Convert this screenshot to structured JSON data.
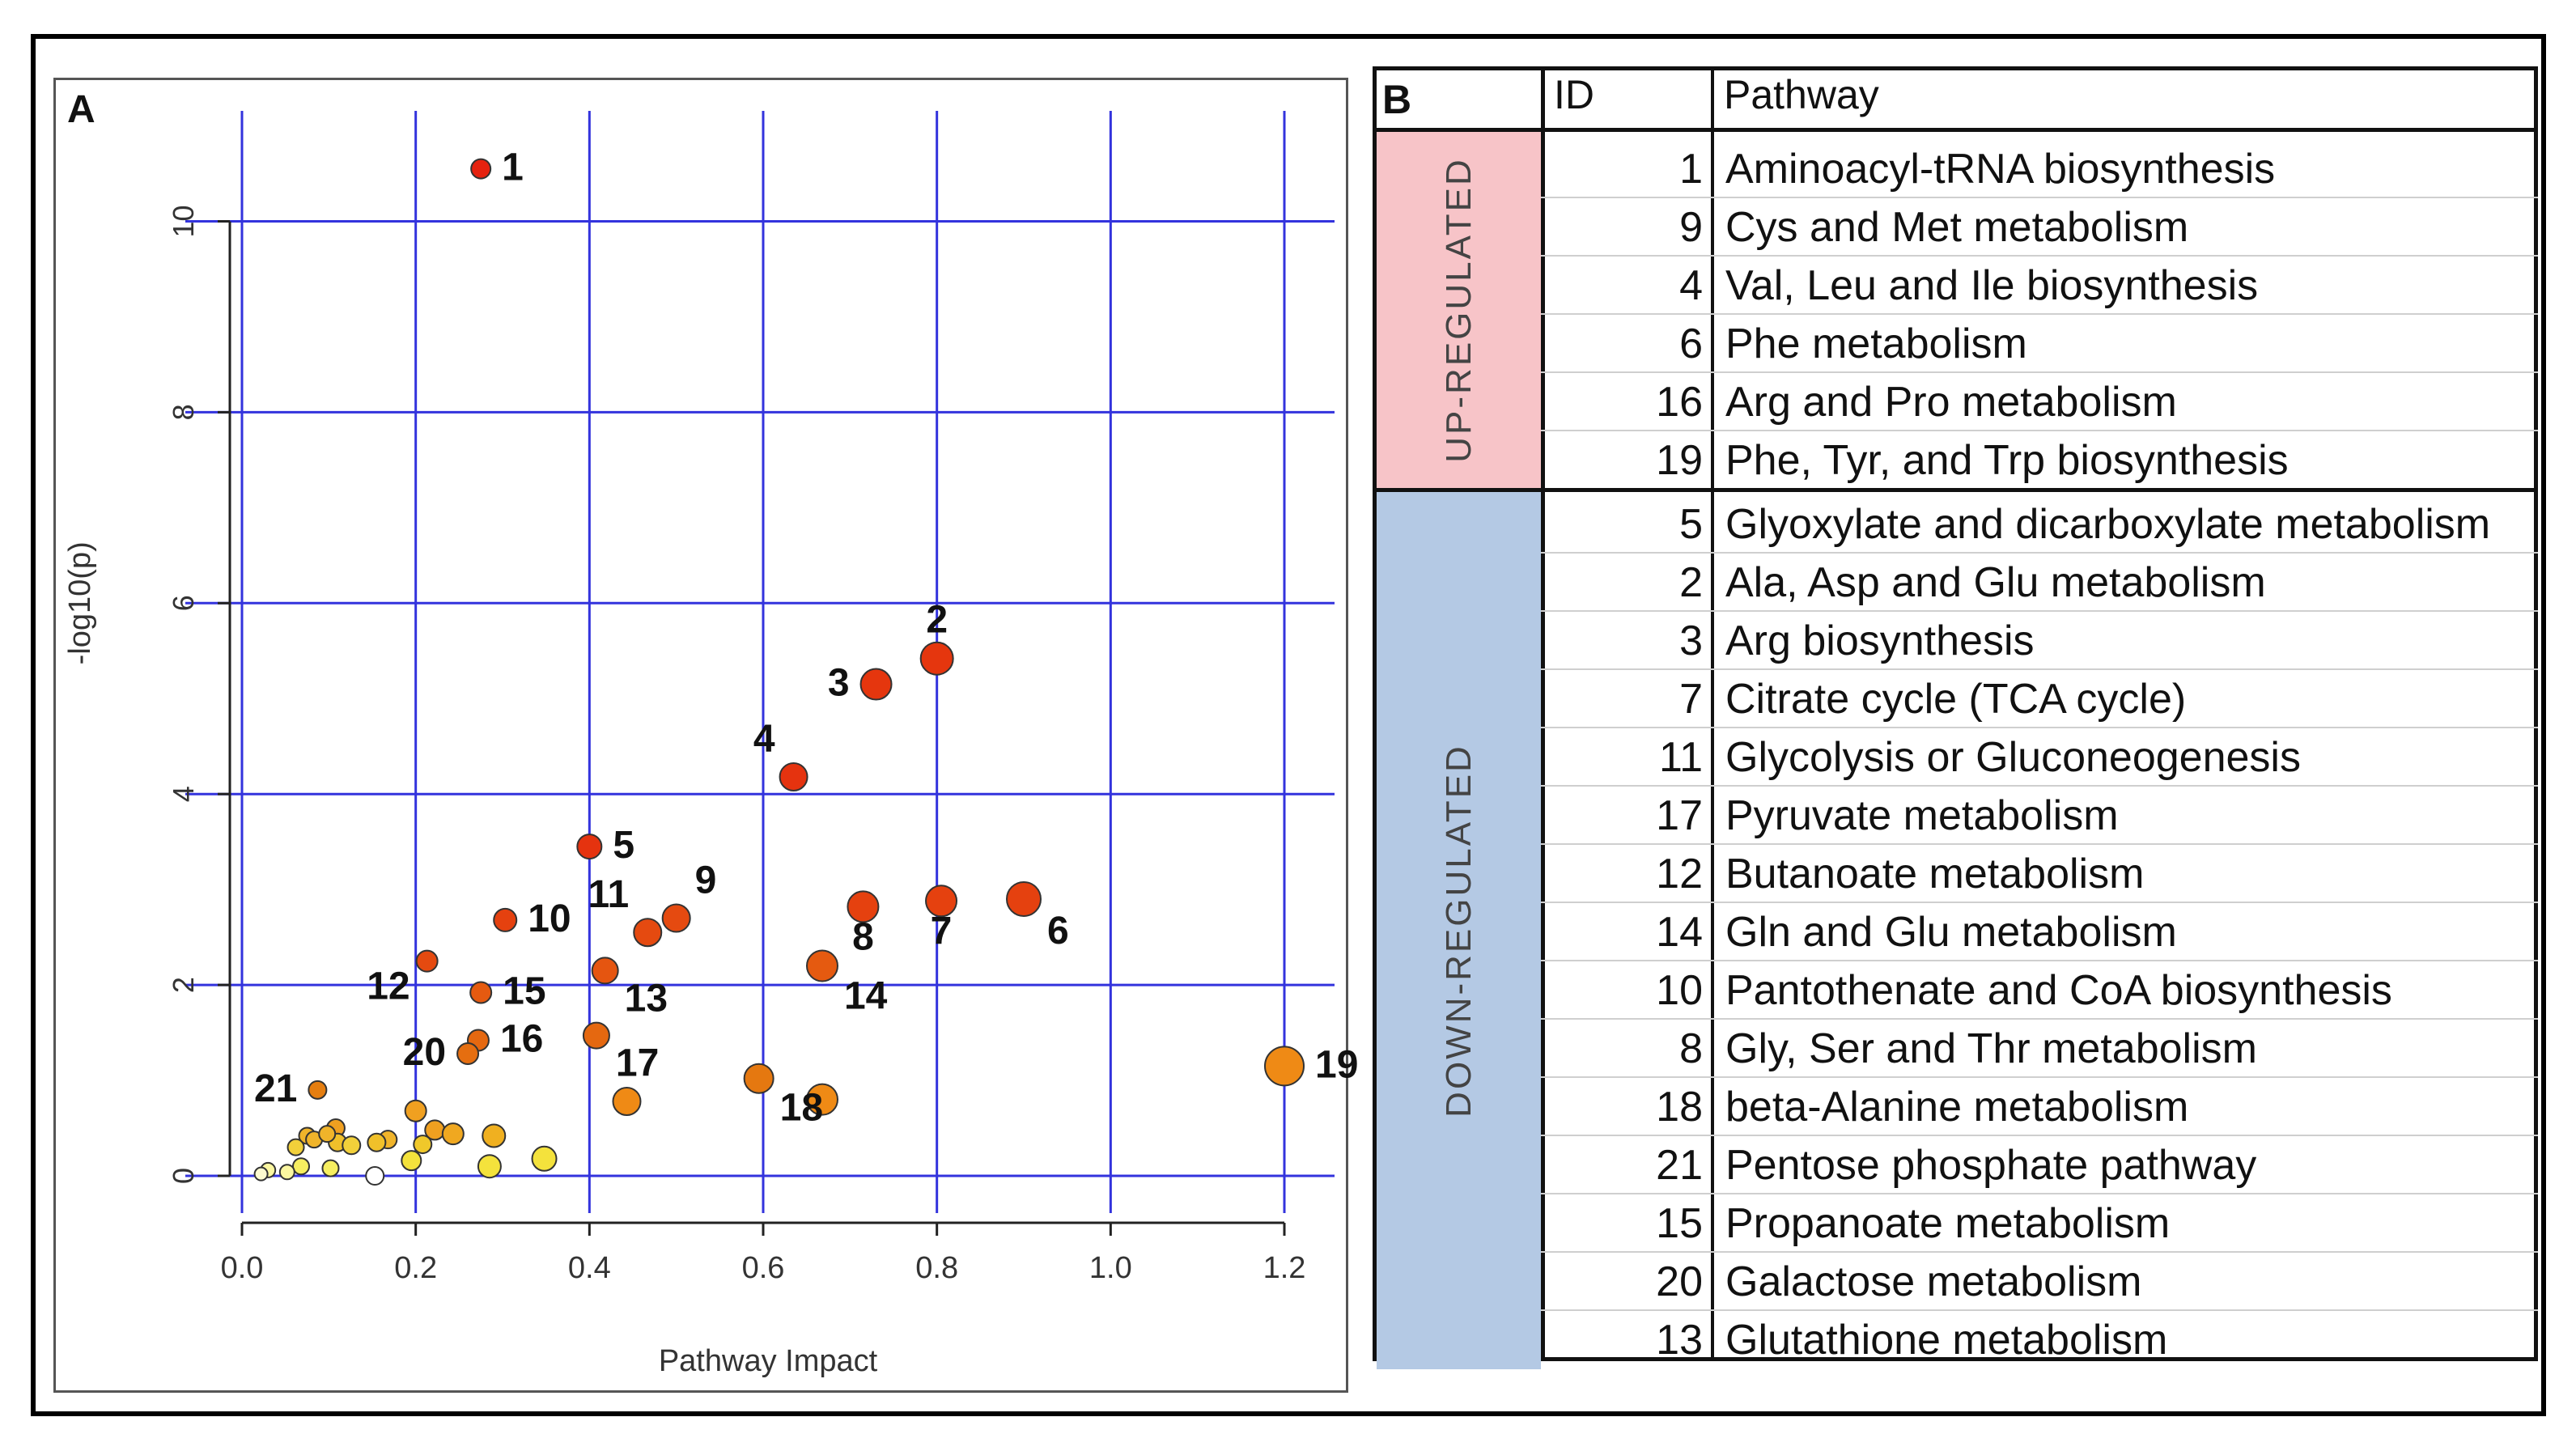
{
  "chart_data": {
    "type": "scatter",
    "panel_label": "A",
    "xlabel": "Pathway Impact",
    "ylabel": "-log10(p)",
    "xlim": [
      0.0,
      1.22
    ],
    "ylim": [
      -0.5,
      10.9
    ],
    "x_ticks": [
      "0.0",
      "0.2",
      "0.4",
      "0.6",
      "0.8",
      "1.0",
      "1.2"
    ],
    "x_tick_values": [
      0.0,
      0.2,
      0.4,
      0.6,
      0.8,
      1.0,
      1.2
    ],
    "y_ticks": [
      "0",
      "2",
      "4",
      "6",
      "8",
      "10"
    ],
    "y_tick_values": [
      0,
      2,
      4,
      6,
      8,
      10
    ],
    "grid": true,
    "labeled_points": [
      {
        "id": "1",
        "x": 0.275,
        "y": 10.55,
        "size": 12,
        "color": "#e5220f"
      },
      {
        "id": "2",
        "x": 0.8,
        "y": 5.42,
        "size": 20,
        "color": "#e5360e"
      },
      {
        "id": "3",
        "x": 0.73,
        "y": 5.15,
        "size": 19,
        "color": "#e5360e"
      },
      {
        "id": "4",
        "x": 0.635,
        "y": 4.18,
        "size": 17,
        "color": "#e5330f"
      },
      {
        "id": "5",
        "x": 0.4,
        "y": 3.45,
        "size": 15,
        "color": "#e5330f"
      },
      {
        "id": "6",
        "x": 0.9,
        "y": 2.9,
        "size": 21,
        "color": "#e5410f"
      },
      {
        "id": "7",
        "x": 0.805,
        "y": 2.88,
        "size": 19,
        "color": "#e5410f"
      },
      {
        "id": "8",
        "x": 0.715,
        "y": 2.82,
        "size": 19,
        "color": "#e5410f"
      },
      {
        "id": "9",
        "x": 0.5,
        "y": 2.7,
        "size": 17,
        "color": "#e54a10"
      },
      {
        "id": "10",
        "x": 0.303,
        "y": 2.68,
        "size": 14,
        "color": "#e5410f"
      },
      {
        "id": "11",
        "x": 0.467,
        "y": 2.55,
        "size": 17,
        "color": "#e54a10"
      },
      {
        "id": "12",
        "x": 0.213,
        "y": 2.25,
        "size": 13,
        "color": "#e54a10"
      },
      {
        "id": "13",
        "x": 0.418,
        "y": 2.15,
        "size": 16,
        "color": "#e55510"
      },
      {
        "id": "14",
        "x": 0.668,
        "y": 2.2,
        "size": 19,
        "color": "#e55a10"
      },
      {
        "id": "15",
        "x": 0.275,
        "y": 1.92,
        "size": 13,
        "color": "#e55a10"
      },
      {
        "id": "16",
        "x": 0.272,
        "y": 1.42,
        "size": 13,
        "color": "#e56810"
      },
      {
        "id": "17",
        "x": 0.408,
        "y": 1.47,
        "size": 16,
        "color": "#e56810"
      },
      {
        "id": "18",
        "x": 0.595,
        "y": 1.02,
        "size": 18,
        "color": "#e57810"
      },
      {
        "id": "19",
        "x": 1.2,
        "y": 1.15,
        "size": 24,
        "color": "#ef8a15"
      },
      {
        "id": "20",
        "x": 0.26,
        "y": 1.28,
        "size": 13,
        "color": "#e56e10"
      },
      {
        "id": "21",
        "x": 0.087,
        "y": 0.9,
        "size": 11,
        "color": "#e57e10"
      }
    ],
    "unlabeled_points": [
      {
        "x": 0.443,
        "y": 0.78,
        "size": 17,
        "color": "#ef8a15"
      },
      {
        "x": 0.668,
        "y": 0.8,
        "size": 19,
        "color": "#ef8a15"
      },
      {
        "x": 0.2,
        "y": 0.68,
        "size": 13,
        "color": "#f0a020"
      },
      {
        "x": 0.108,
        "y": 0.5,
        "size": 11,
        "color": "#f0a020"
      },
      {
        "x": 0.222,
        "y": 0.48,
        "size": 12,
        "color": "#f0a020"
      },
      {
        "x": 0.243,
        "y": 0.44,
        "size": 13,
        "color": "#f0a820"
      },
      {
        "x": 0.29,
        "y": 0.42,
        "size": 14,
        "color": "#f0b020"
      },
      {
        "x": 0.168,
        "y": 0.38,
        "size": 11,
        "color": "#f0b42a"
      },
      {
        "x": 0.075,
        "y": 0.42,
        "size": 10,
        "color": "#f0b42a"
      },
      {
        "x": 0.083,
        "y": 0.38,
        "size": 10,
        "color": "#f0b42a"
      },
      {
        "x": 0.155,
        "y": 0.35,
        "size": 11,
        "color": "#f0c02a"
      },
      {
        "x": 0.11,
        "y": 0.35,
        "size": 11,
        "color": "#f0c02a"
      },
      {
        "x": 0.208,
        "y": 0.33,
        "size": 11,
        "color": "#f0c82a"
      },
      {
        "x": 0.126,
        "y": 0.32,
        "size": 11,
        "color": "#f2d03a"
      },
      {
        "x": 0.062,
        "y": 0.3,
        "size": 10,
        "color": "#f2d03a"
      },
      {
        "x": 0.098,
        "y": 0.44,
        "size": 10,
        "color": "#f0b42a"
      },
      {
        "x": 0.348,
        "y": 0.18,
        "size": 15,
        "color": "#f4e23c"
      },
      {
        "x": 0.195,
        "y": 0.16,
        "size": 12,
        "color": "#f4e23c"
      },
      {
        "x": 0.285,
        "y": 0.1,
        "size": 14,
        "color": "#f4e23c"
      },
      {
        "x": 0.102,
        "y": 0.08,
        "size": 10,
        "color": "#f6ee60"
      },
      {
        "x": 0.068,
        "y": 0.1,
        "size": 10,
        "color": "#f6ee60"
      },
      {
        "x": 0.052,
        "y": 0.04,
        "size": 9,
        "color": "#fbf7a0"
      },
      {
        "x": 0.03,
        "y": 0.06,
        "size": 9,
        "color": "#fbf7a0"
      },
      {
        "x": 0.022,
        "y": 0.02,
        "size": 8,
        "color": "#fdfbd0"
      },
      {
        "x": 0.153,
        "y": 0.0,
        "size": 11,
        "color": "#ffffff"
      }
    ],
    "label_positions": {
      "1": "right",
      "2": "top",
      "3": "left",
      "4": "top-left",
      "5": "right",
      "6": "below-right",
      "7": "below",
      "8": "below",
      "9": "top-right",
      "10": "right",
      "11": "top-left",
      "12": "left-below",
      "13": "below-right",
      "14": "below-right",
      "15": "right",
      "16": "right",
      "17": "below-right",
      "18": "below-right",
      "19": "right",
      "20": "left",
      "21": "left"
    }
  },
  "table": {
    "panel_label": "B",
    "headers": {
      "id": "ID",
      "pathway": "Pathway"
    },
    "groups": [
      {
        "label": "UP-REGULATED",
        "color": "#f7c4c8",
        "rows": [
          {
            "id": "1",
            "pathway": "Aminoacyl-tRNA biosynthesis"
          },
          {
            "id": "9",
            "pathway": "Cys and Met metabolism"
          },
          {
            "id": "4",
            "pathway": "Val, Leu and Ile biosynthesis"
          },
          {
            "id": "6",
            "pathway": "Phe metabolism"
          },
          {
            "id": "16",
            "pathway": "Arg and Pro metabolism"
          },
          {
            "id": "19",
            "pathway": "Phe, Tyr, and Trp biosynthesis"
          }
        ]
      },
      {
        "label": "DOWN-REGULATED",
        "color": "#b4c9e4",
        "rows": [
          {
            "id": "5",
            "pathway": "Glyoxylate and dicarboxylate metabolism"
          },
          {
            "id": "2",
            "pathway": "Ala, Asp and Glu metabolism"
          },
          {
            "id": "3",
            "pathway": "Arg biosynthesis"
          },
          {
            "id": "7",
            "pathway": "Citrate cycle (TCA cycle)"
          },
          {
            "id": "11",
            "pathway": "Glycolysis or Gluconeogenesis"
          },
          {
            "id": "17",
            "pathway": "Pyruvate metabolism"
          },
          {
            "id": "12",
            "pathway": "Butanoate metabolism"
          },
          {
            "id": "14",
            "pathway": "Gln and Glu metabolism"
          },
          {
            "id": "10",
            "pathway": "Pantothenate and CoA biosynthesis"
          },
          {
            "id": "8",
            "pathway": "Gly, Ser and Thr metabolism"
          },
          {
            "id": "18",
            "pathway": "beta-Alanine metabolism"
          },
          {
            "id": "21",
            "pathway": "Pentose phosphate pathway"
          },
          {
            "id": "15",
            "pathway": "Propanoate metabolism"
          },
          {
            "id": "20",
            "pathway": "Galactose metabolism"
          },
          {
            "id": "13",
            "pathway": "Glutathione metabolism"
          }
        ]
      }
    ]
  }
}
